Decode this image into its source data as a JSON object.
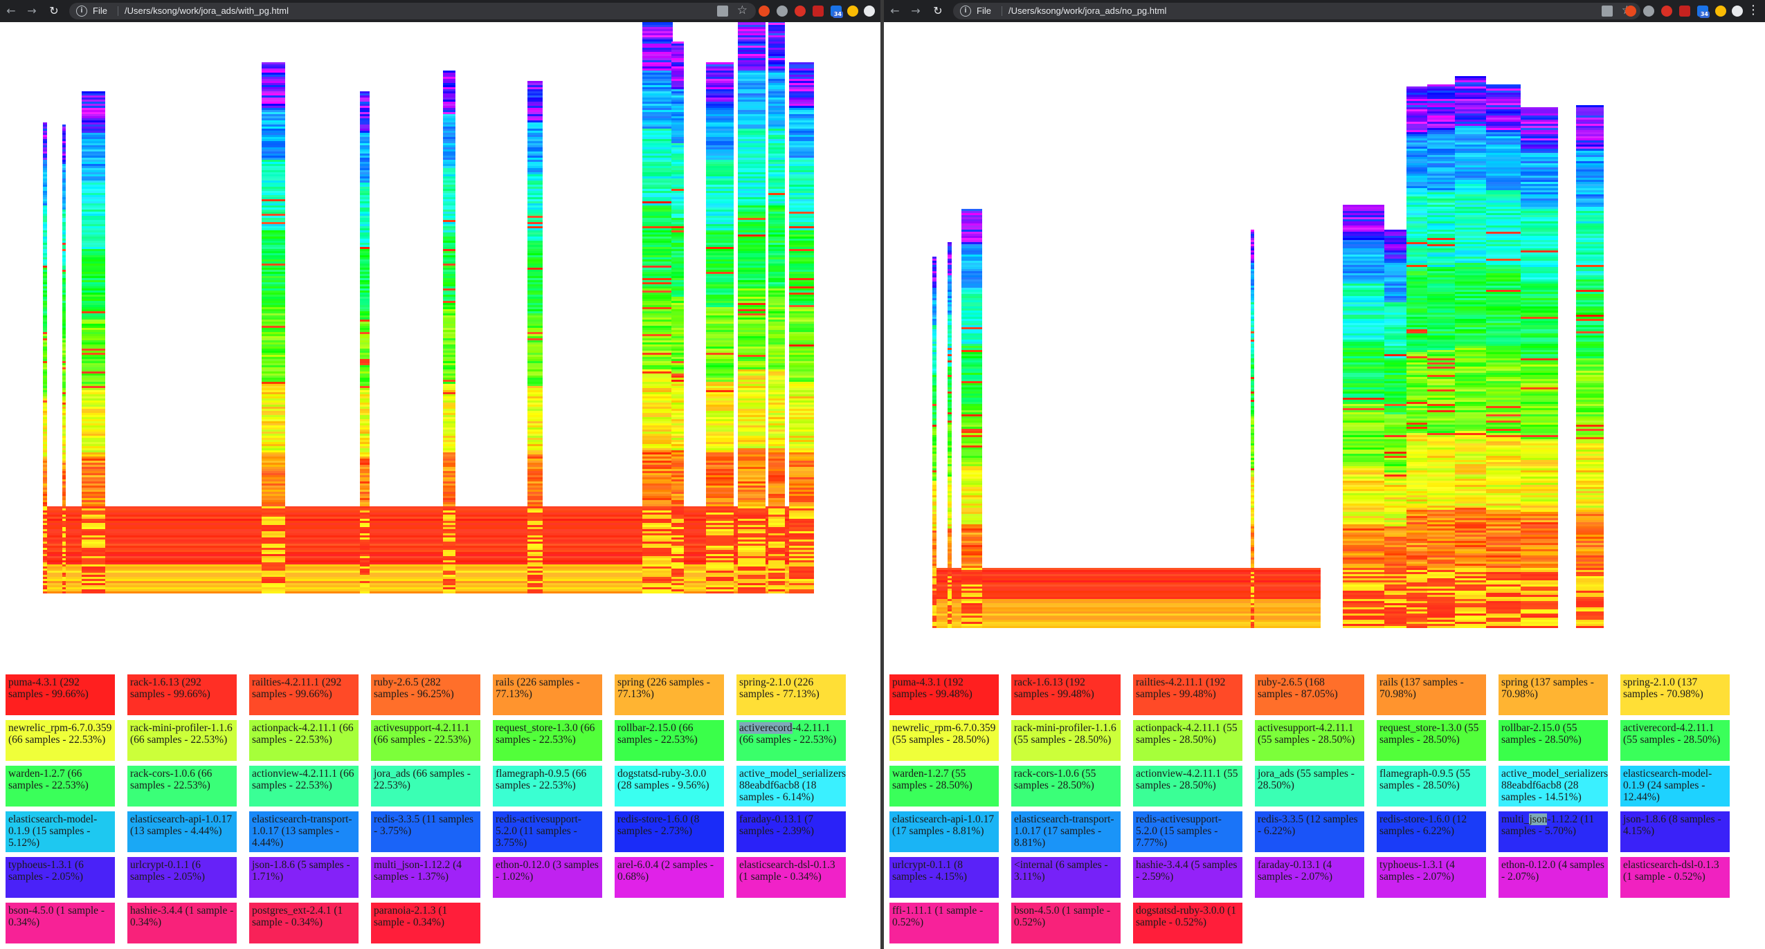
{
  "windows": [
    {
      "id": "left",
      "scheme": "File",
      "url": "/Users/ksong/work/jora_ads/with_pg.html",
      "ext_badge": "34",
      "legend": [
        {
          "text": "puma-4.3.1 (292 samples - 99.66%)",
          "color": "#ff1f1f"
        },
        {
          "text": "rack-1.6.13 (292 samples - 99.66%)",
          "color": "#ff2f25"
        },
        {
          "text": "railties-4.2.11.1 (292 samples - 99.66%)",
          "color": "#ff4a27"
        },
        {
          "text": "ruby-2.6.5 (282 samples - 96.25%)",
          "color": "#ff6f2a"
        },
        {
          "text": "rails (226 samples - 77.13%)",
          "color": "#ff942e"
        },
        {
          "text": "spring (226 samples - 77.13%)",
          "color": "#ffb432"
        },
        {
          "text": "spring-2.1.0 (226 samples - 77.13%)",
          "color": "#ffdf36"
        },
        {
          "text": "newrelic_rpm-6.7.0.359 (66 samples - 22.53%)",
          "color": "#efff3a"
        },
        {
          "text": "rack-mini-profiler-1.1.6 (66 samples - 22.53%)",
          "color": "#ccff3a"
        },
        {
          "text": "actionpack-4.2.11.1 (66 samples - 22.53%)",
          "color": "#a6ff3a"
        },
        {
          "text": "activesupport-4.2.11.1 (66 samples - 22.53%)",
          "color": "#7cff3a"
        },
        {
          "text": "request_store-1.3.0 (66 samples - 22.53%)",
          "color": "#52ff3a"
        },
        {
          "text": "rollbar-2.15.0 (66 samples - 22.53%)",
          "color": "#3aff4a"
        },
        {
          "text": "activerecord-4.2.11.1 (66 samples - 22.53%)",
          "color": "#3aff6a",
          "highlight": "activerecord"
        },
        {
          "text": "warden-1.2.7 (66 samples - 22.53%)",
          "color": "#3aff5a"
        },
        {
          "text": "rack-cors-1.0.6 (66 samples - 22.53%)",
          "color": "#3aff78"
        },
        {
          "text": "actionview-4.2.11.1 (66 samples - 22.53%)",
          "color": "#3aff96"
        },
        {
          "text": "jora_ads (66 samples - 22.53%)",
          "color": "#3affb4"
        },
        {
          "text": "flamegraph-0.9.5 (66 samples - 22.53%)",
          "color": "#3affd2"
        },
        {
          "text": "dogstatsd-ruby-3.0.0 (28 samples - 9.56%)",
          "color": "#3afff0"
        },
        {
          "text": "active_model_serializers-88eabdf6acb8 (18 samples - 6.14%)",
          "color": "#3af0ff"
        },
        {
          "text": "elasticsearch-model-0.1.9 (15 samples - 5.12%)",
          "color": "#1ec8f0"
        },
        {
          "text": "elasticsearch-api-1.0.17 (13 samples - 4.44%)",
          "color": "#1aa8f5"
        },
        {
          "text": "elasticsearch-transport-1.0.17 (13 samples - 4.44%)",
          "color": "#1a88f8"
        },
        {
          "text": "redis-3.3.5 (11 samples - 3.75%)",
          "color": "#1a64f8"
        },
        {
          "text": "redis-activesupport-5.2.0 (11 samples - 3.75%)",
          "color": "#1a44f8"
        },
        {
          "text": "redis-store-1.6.0 (8 samples - 2.73%)",
          "color": "#1a2cf8"
        },
        {
          "text": "faraday-0.13.1 (7 samples - 2.39%)",
          "color": "#2a22f8"
        },
        {
          "text": "typhoeus-1.3.1 (6 samples - 2.05%)",
          "color": "#4a22f8"
        },
        {
          "text": "urlcrypt-0.1.1 (6 samples - 2.05%)",
          "color": "#6622f8"
        },
        {
          "text": "json-1.8.6 (5 samples - 1.71%)",
          "color": "#8422f8"
        },
        {
          "text": "multi_json-1.12.2 (4 samples - 1.37%)",
          "color": "#a022f8"
        },
        {
          "text": "ethon-0.12.0 (3 samples - 1.02%)",
          "color": "#c022f0"
        },
        {
          "text": "arel-6.0.4 (2 samples - 0.68%)",
          "color": "#e022e8"
        },
        {
          "text": "elasticsearch-dsl-0.1.3 (1 sample - 0.34%)",
          "color": "#f022c8"
        },
        {
          "text": "bson-4.5.0 (1 sample - 0.34%)",
          "color": "#f72296"
        },
        {
          "text": "hashie-3.4.4 (1 sample - 0.34%)",
          "color": "#f8227a"
        },
        {
          "text": "postgres_ext-2.4.1 (1 sample - 0.34%)",
          "color": "#f82258"
        },
        {
          "text": "paranoia-2.1.3 (1 sample - 0.34%)",
          "color": "#ff1e3a"
        }
      ]
    },
    {
      "id": "right",
      "scheme": "File",
      "url": "/Users/ksong/work/jora_ads/no_pg.html",
      "ext_badge": "34",
      "legend": [
        {
          "text": "puma-4.3.1 (192 samples - 99.48%)",
          "color": "#ff1f1f"
        },
        {
          "text": "rack-1.6.13 (192 samples - 99.48%)",
          "color": "#ff2f25"
        },
        {
          "text": "railties-4.2.11.1 (192 samples - 99.48%)",
          "color": "#ff4a27"
        },
        {
          "text": "ruby-2.6.5 (168 samples - 87.05%)",
          "color": "#ff6f2a"
        },
        {
          "text": "rails (137 samples - 70.98%)",
          "color": "#ff942e"
        },
        {
          "text": "spring (137 samples - 70.98%)",
          "color": "#ffb432"
        },
        {
          "text": "spring-2.1.0 (137 samples - 70.98%)",
          "color": "#ffdf36"
        },
        {
          "text": "newrelic_rpm-6.7.0.359 (55 samples - 28.50%)",
          "color": "#efff3a"
        },
        {
          "text": "rack-mini-profiler-1.1.6 (55 samples - 28.50%)",
          "color": "#ccff3a"
        },
        {
          "text": "actionpack-4.2.11.1 (55 samples - 28.50%)",
          "color": "#a6ff3a"
        },
        {
          "text": "activesupport-4.2.11.1 (55 samples - 28.50%)",
          "color": "#7cff3a"
        },
        {
          "text": "request_store-1.3.0 (55 samples - 28.50%)",
          "color": "#52ff3a"
        },
        {
          "text": "rollbar-2.15.0 (55 samples - 28.50%)",
          "color": "#3aff4a"
        },
        {
          "text": "activerecord-4.2.11.1 (55 samples - 28.50%)",
          "color": "#3aff5a"
        },
        {
          "text": "warden-1.2.7 (55 samples - 28.50%)",
          "color": "#3aff5a"
        },
        {
          "text": "rack-cors-1.0.6 (55 samples - 28.50%)",
          "color": "#3aff78"
        },
        {
          "text": "actionview-4.2.11.1 (55 samples - 28.50%)",
          "color": "#3aff96"
        },
        {
          "text": "jora_ads (55 samples - 28.50%)",
          "color": "#3affb4"
        },
        {
          "text": "flamegraph-0.9.5 (55 samples - 28.50%)",
          "color": "#3affd2"
        },
        {
          "text": "active_model_serializers-88eabdf6acb8 (28 samples - 14.51%)",
          "color": "#3af0ff"
        },
        {
          "text": "elasticsearch-model-0.1.9 (24 samples - 12.44%)",
          "color": "#1ed2ff"
        },
        {
          "text": "elasticsearch-api-1.0.17 (17 samples - 8.81%)",
          "color": "#1ab4f5"
        },
        {
          "text": "elasticsearch-transport-1.0.17 (17 samples - 8.81%)",
          "color": "#1a94f8"
        },
        {
          "text": "redis-activesupport-5.2.0 (15 samples - 7.77%)",
          "color": "#1a74f8"
        },
        {
          "text": "redis-3.3.5 (12 samples - 6.22%)",
          "color": "#1a54f8"
        },
        {
          "text": "redis-store-1.6.0 (12 samples - 6.22%)",
          "color": "#1a3cf8"
        },
        {
          "text": "multi_json-1.12.2 (11 samples - 5.70%)",
          "color": "#2a2af8",
          "highlight": "json"
        },
        {
          "text": "json-1.8.6 (8 samples - 4.15%)",
          "color": "#3a22f8"
        },
        {
          "text": "urlcrypt-0.1.1 (8 samples - 4.15%)",
          "color": "#5a22f8"
        },
        {
          "text": "<internal (6 samples - 3.11%)",
          "color": "#7622f8"
        },
        {
          "text": "hashie-3.4.4 (5 samples - 2.59%)",
          "color": "#9422f8"
        },
        {
          "text": "faraday-0.13.1 (4 samples - 2.07%)",
          "color": "#b022f8"
        },
        {
          "text": "typhoeus-1.3.1 (4 samples - 2.07%)",
          "color": "#cc22f0"
        },
        {
          "text": "ethon-0.12.0 (4 samples - 2.07%)",
          "color": "#e022e0"
        },
        {
          "text": "elasticsearch-dsl-0.1.3 (1 sample - 0.52%)",
          "color": "#f022c0"
        },
        {
          "text": "ffi-1.11.1 (1 sample - 0.52%)",
          "color": "#f7229a"
        },
        {
          "text": "bson-4.5.0 (1 sample - 0.52%)",
          "color": "#f8227a"
        },
        {
          "text": "dogstatsd-ruby-3.0.0 (1 sample - 0.52%)",
          "color": "#ff1e3a"
        }
      ]
    }
  ]
}
